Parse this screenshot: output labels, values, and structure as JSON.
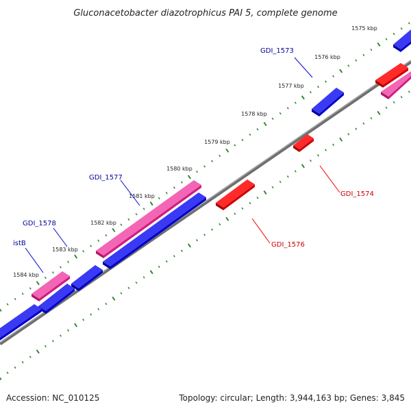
{
  "title": "Gluconacetobacter diazotrophicus PAI 5, complete genome",
  "tick_labels": [
    "1575 kbp",
    "1576 kbp",
    "1577 kbp",
    "1578 kbp",
    "1579 kbp",
    "1580 kbp",
    "1581 kbp",
    "1582 kbp",
    "1583 kbp",
    "1584 kbp"
  ],
  "gene_labels": {
    "gdi_1573": "GDI_1573",
    "gdi_1574": "GDI_1574",
    "gdi_1576": "GDI_1576",
    "gdi_1577": "GDI_1577",
    "gdi_1578": "GDI_1578",
    "istb": "istB"
  },
  "footer": {
    "accession": "Accession: NC_010125",
    "summary": "Topology: circular; Length: 3,944,163 bp; Genes: 3,845"
  },
  "colors": {
    "backbone": "#808080",
    "ticks": "#2e8b2e",
    "forward_gene": "#0000dd",
    "reverse_gene": "#ee0000",
    "pseudo_gene": "#ee2288",
    "label_forward": "#000099",
    "label_reverse": "#cc0000"
  }
}
